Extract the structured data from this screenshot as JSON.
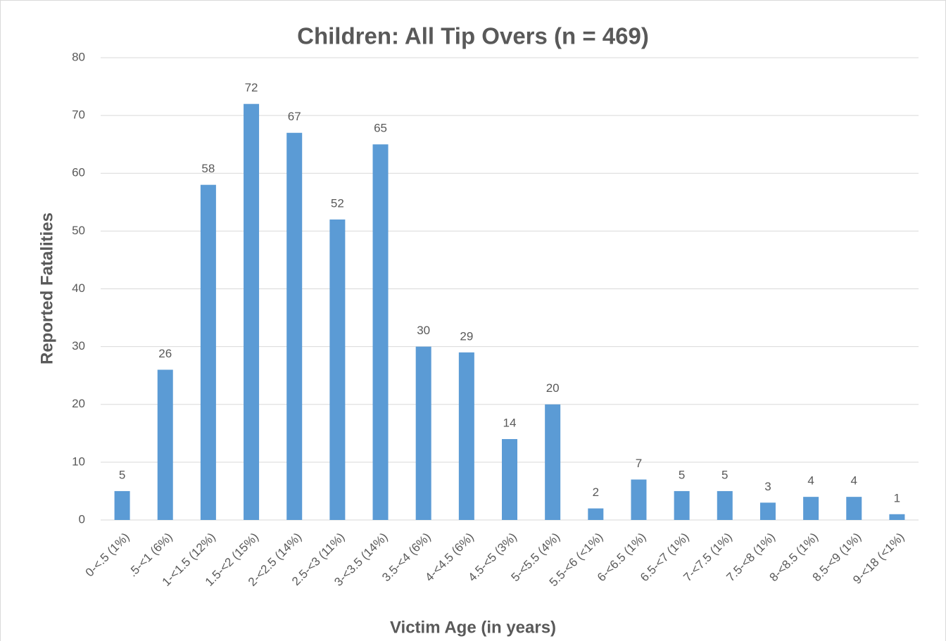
{
  "chart_data": {
    "type": "bar",
    "title": "Children: All Tip Overs (n = 469)",
    "x_label": "Victim Age (in years)",
    "y_label": "Reported Fatalities",
    "categories": [
      "0-<.5 (1%)",
      ".5-<1 (6%)",
      "1-<1.5 (12%)",
      "1.5-<2 (15%)",
      "2-<2.5 (14%)",
      "2.5-<3 (11%)",
      "3-<3.5 (14%)",
      "3.5-<4 (6%)",
      "4-<4.5 (6%)",
      "4.5-<5 (3%)",
      "5-<5.5 (4%)",
      "5.5-<6 (<1%)",
      "6-<6.5 (1%)",
      "6.5-<7 (1%)",
      "7-<7.5 (1%)",
      "7.5-<8 (1%)",
      "8-<8.5 (1%)",
      "8.5-<9 (1%)",
      "9-<18 (<1%)"
    ],
    "values": [
      5,
      26,
      58,
      72,
      67,
      52,
      65,
      30,
      29,
      14,
      20,
      2,
      7,
      5,
      5,
      3,
      4,
      4,
      1
    ],
    "color": "#5b9bd5",
    "ylim": [
      0,
      80
    ],
    "yticks": [
      0,
      10,
      20,
      30,
      40,
      50,
      60,
      70,
      80
    ],
    "grid": true
  }
}
